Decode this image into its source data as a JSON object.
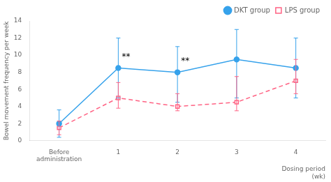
{
  "chart_data": {
    "type": "line",
    "categories": [
      "Before\nadministration",
      "1",
      "2",
      "3",
      "4"
    ],
    "series": [
      {
        "name": "DKT group",
        "values": [
          2.0,
          8.5,
          8.0,
          9.5,
          8.5
        ],
        "yerr_low": [
          1.6,
          3.5,
          3.5,
          4.5,
          3.5
        ],
        "yerr_high": [
          1.6,
          3.5,
          3.0,
          3.5,
          3.5
        ],
        "marker": "circle",
        "line_style": "solid"
      },
      {
        "name": "LPS group",
        "values": [
          1.5,
          5.0,
          4.0,
          4.5,
          7.0
        ],
        "yerr_low": [
          0.8,
          1.2,
          0.5,
          1.0,
          1.5
        ],
        "yerr_high": [
          0.8,
          1.8,
          1.5,
          3.0,
          2.5
        ],
        "marker": "square",
        "line_style": "dashed"
      }
    ],
    "ylabel": "Bowel movement frequency per week",
    "xlabel": "Dosing period\n(wk)",
    "ylim": [
      0,
      14
    ],
    "yticks": [
      0,
      2,
      4,
      6,
      8,
      10,
      12,
      14
    ],
    "annotations": [
      {
        "text": "**",
        "category": "1",
        "y": 9.3
      },
      {
        "text": "**",
        "category": "2",
        "y": 8.8
      }
    ],
    "legend": "upper right",
    "grid": false
  }
}
